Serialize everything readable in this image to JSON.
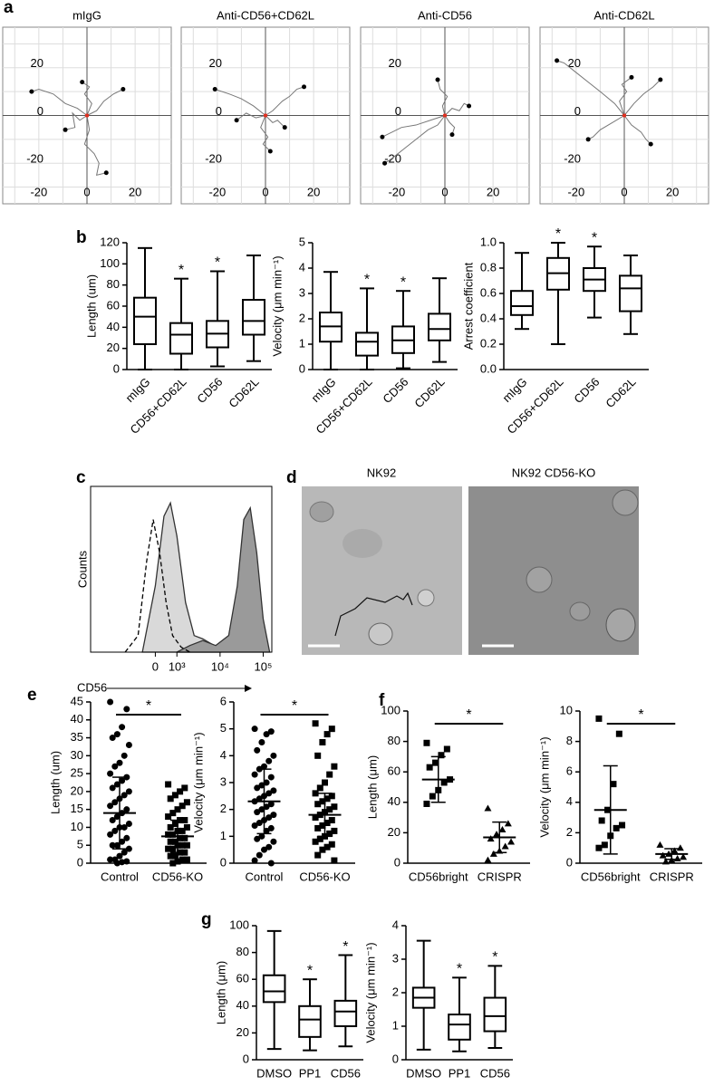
{
  "panel_labels": [
    "a",
    "b",
    "c",
    "d",
    "e",
    "f",
    "g"
  ],
  "images": [
    {
      "title": "NK92"
    },
    {
      "title": "NK92 CD56-KO"
    }
  ],
  "chart_data": [
    {
      "type": "tracks",
      "title": "mIgG",
      "xlim": [
        -35,
        35
      ],
      "ylim": [
        -37,
        37
      ],
      "xticks": [
        -20,
        0,
        20
      ],
      "yticks": [
        -20,
        0,
        20
      ],
      "xgrid": [
        -30,
        -20,
        -10,
        0,
        10,
        20,
        30
      ],
      "ygrid": [
        -30,
        -20,
        -10,
        0,
        10,
        20,
        30
      ],
      "color": "#777777",
      "start_color": "#e03020",
      "end_color": "#000000",
      "series": [
        {
          "x": [
            0,
            -4,
            -9,
            -14,
            -20,
            -23
          ],
          "y": [
            0,
            3,
            5,
            9,
            11,
            10
          ]
        },
        {
          "x": [
            0,
            1,
            -1,
            3,
            5,
            4,
            8
          ],
          "y": [
            0,
            -6,
            -12,
            -16,
            -20,
            -25,
            -24
          ]
        },
        {
          "x": [
            0,
            4,
            7,
            11,
            15
          ],
          "y": [
            0,
            2,
            6,
            9,
            11
          ]
        },
        {
          "x": [
            0,
            -3,
            -6,
            -5,
            -9
          ],
          "y": [
            0,
            -2,
            1,
            -5,
            -6
          ]
        },
        {
          "x": [
            0,
            2,
            -1,
            1,
            -2
          ],
          "y": [
            0,
            5,
            9,
            12,
            14
          ]
        }
      ]
    },
    {
      "type": "tracks",
      "title": "Anti-CD56+CD62L",
      "xlim": [
        -35,
        35
      ],
      "ylim": [
        -37,
        37
      ],
      "xticks": [
        -20,
        0,
        20
      ],
      "yticks": [
        -20,
        0,
        20
      ],
      "xgrid": [
        -30,
        -20,
        -10,
        0,
        10,
        20,
        30
      ],
      "ygrid": [
        -30,
        -20,
        -10,
        0,
        10,
        20,
        30
      ],
      "color": "#777777",
      "start_color": "#e03020",
      "end_color": "#000000",
      "series": [
        {
          "x": [
            0,
            -5,
            -10,
            -15,
            -21
          ],
          "y": [
            0,
            4,
            7,
            9,
            11
          ]
        },
        {
          "x": [
            0,
            3,
            7,
            10,
            13,
            16
          ],
          "y": [
            0,
            2,
            6,
            8,
            11,
            12
          ]
        },
        {
          "x": [
            0,
            -2,
            1,
            -1,
            2
          ],
          "y": [
            0,
            -5,
            -9,
            -12,
            -15
          ]
        },
        {
          "x": [
            0,
            -4,
            -8,
            -12
          ],
          "y": [
            0,
            -1,
            1,
            -2
          ]
        },
        {
          "x": [
            0,
            3,
            5,
            8
          ],
          "y": [
            0,
            -3,
            -2,
            -5
          ]
        }
      ]
    },
    {
      "type": "tracks",
      "title": "Anti-CD56",
      "xlim": [
        -35,
        35
      ],
      "ylim": [
        -37,
        37
      ],
      "xticks": [
        -20,
        0,
        20
      ],
      "yticks": [
        -20,
        0,
        20
      ],
      "xgrid": [
        -30,
        -20,
        -10,
        0,
        10,
        20,
        30
      ],
      "ygrid": [
        -30,
        -20,
        -10,
        0,
        10,
        20,
        30
      ],
      "color": "#777777",
      "start_color": "#e03020",
      "end_color": "#000000",
      "series": [
        {
          "x": [
            0,
            -3,
            -7,
            -12,
            -17,
            -22,
            -25
          ],
          "y": [
            0,
            -4,
            -6,
            -10,
            -14,
            -18,
            -20
          ]
        },
        {
          "x": [
            0,
            -6,
            -12,
            -18,
            -24,
            -26
          ],
          "y": [
            0,
            -2,
            -4,
            -5,
            -8,
            -9
          ]
        },
        {
          "x": [
            0,
            -1,
            1,
            -2,
            -3
          ],
          "y": [
            0,
            4,
            8,
            11,
            15
          ]
        },
        {
          "x": [
            0,
            3,
            6,
            8,
            10
          ],
          "y": [
            0,
            3,
            2,
            5,
            4
          ]
        },
        {
          "x": [
            0,
            2,
            4,
            3
          ],
          "y": [
            0,
            -3,
            -5,
            -8
          ]
        }
      ]
    },
    {
      "type": "tracks",
      "title": "Anti-CD62L",
      "xlim": [
        -35,
        35
      ],
      "ylim": [
        -37,
        37
      ],
      "xticks": [
        -20,
        0,
        20
      ],
      "yticks": [
        -20,
        0,
        20
      ],
      "xgrid": [
        -30,
        -20,
        -10,
        0,
        10,
        20,
        30
      ],
      "ygrid": [
        -30,
        -20,
        -10,
        0,
        10,
        20,
        30
      ],
      "color": "#777777",
      "start_color": "#e03020",
      "end_color": "#000000",
      "series": [
        {
          "x": [
            0,
            -4,
            -10,
            -15,
            -20,
            -25,
            -28
          ],
          "y": [
            0,
            5,
            10,
            14,
            18,
            22,
            23
          ]
        },
        {
          "x": [
            0,
            4,
            8,
            12,
            15
          ],
          "y": [
            0,
            5,
            9,
            12,
            15
          ]
        },
        {
          "x": [
            0,
            -5,
            -10,
            -13,
            -15
          ],
          "y": [
            0,
            -3,
            -6,
            -9,
            -10
          ]
        },
        {
          "x": [
            0,
            3,
            7,
            9,
            11
          ],
          "y": [
            0,
            -4,
            -7,
            -10,
            -12
          ]
        },
        {
          "x": [
            0,
            -2,
            1,
            -1,
            3
          ],
          "y": [
            0,
            6,
            10,
            13,
            16
          ]
        }
      ]
    },
    {
      "type": "box",
      "ylabel": "Length (um)",
      "categories": [
        "mIgG",
        "CD56+CD62L",
        "CD56",
        "CD62L"
      ],
      "ylim": [
        0,
        120
      ],
      "yticks": [
        0,
        20,
        40,
        60,
        80,
        100,
        120
      ],
      "values": [
        [
          0,
          24,
          50,
          68,
          115
        ],
        [
          0,
          15,
          33,
          44,
          86
        ],
        [
          3,
          21,
          34,
          46,
          93
        ],
        [
          8,
          33,
          46,
          66,
          108
        ]
      ],
      "annotations": [
        {
          "text": "*",
          "category": "CD56+CD62L"
        },
        {
          "text": "*",
          "category": "CD56"
        }
      ]
    },
    {
      "type": "box",
      "ylabel": "Velocity (μm min⁻¹)",
      "categories": [
        "mIgG",
        "CD56+CD62L",
        "CD56",
        "CD62L"
      ],
      "ylim": [
        0,
        5
      ],
      "yticks": [
        0,
        1,
        2,
        3,
        4,
        5
      ],
      "values": [
        [
          0,
          1.1,
          1.7,
          2.25,
          3.85
        ],
        [
          0,
          0.55,
          1.1,
          1.45,
          3.2
        ],
        [
          0.05,
          0.65,
          1.15,
          1.7,
          3.1
        ],
        [
          0.3,
          1.15,
          1.6,
          2.2,
          3.6
        ]
      ],
      "annotations": [
        {
          "text": "*",
          "category": "CD56+CD62L"
        },
        {
          "text": "*",
          "category": "CD56"
        }
      ]
    },
    {
      "type": "box",
      "ylabel": "Arrest coefficient",
      "categories": [
        "mIgG",
        "CD56+CD62L",
        "CD56",
        "CD62L"
      ],
      "ylim": [
        0,
        1
      ],
      "yticks": [
        {
          "value": 0,
          "label": "0.0"
        },
        0.2,
        0.4,
        0.6,
        0.8,
        {
          "value": 1,
          "label": "1.0"
        }
      ],
      "values": [
        [
          0.32,
          0.43,
          0.5,
          0.62,
          0.92
        ],
        [
          0.2,
          0.63,
          0.76,
          0.88,
          1.0
        ],
        [
          0.41,
          0.62,
          0.71,
          0.8,
          0.97
        ],
        [
          0.28,
          0.46,
          0.64,
          0.74,
          0.9
        ]
      ],
      "annotations": [
        {
          "text": "*",
          "category": "CD56+CD62L"
        },
        {
          "text": "*",
          "category": "CD56"
        }
      ]
    },
    {
      "type": "density",
      "xlabel": "CD56",
      "ylabel": "Counts",
      "xlim": [
        1.0,
        5.2
      ],
      "ylim": [
        0,
        100
      ],
      "xticks": [
        {
          "value": 2.5,
          "label": "0"
        },
        {
          "value": 3,
          "label": "10³"
        },
        {
          "value": 4,
          "label": "10⁴"
        },
        {
          "value": 5,
          "label": "10⁵"
        }
      ],
      "series": [
        {
          "color": "#d9d9d9",
          "fill": true,
          "x": [
            2.2,
            2.5,
            2.7,
            2.85,
            3.0,
            3.2,
            3.4,
            3.6,
            3.8,
            4.0
          ],
          "values": [
            0,
            40,
            82,
            90,
            70,
            30,
            10,
            8,
            5,
            0
          ]
        },
        {
          "color": "#9a9a9a",
          "fill": true,
          "x": [
            3.0,
            3.3,
            3.6,
            3.9,
            4.2,
            4.4,
            4.55,
            4.7,
            4.85,
            5.0,
            5.15
          ],
          "values": [
            0,
            4,
            7,
            4,
            10,
            40,
            80,
            87,
            60,
            20,
            0
          ]
        },
        {
          "color": "#000000",
          "dash": true,
          "x": [
            1.8,
            2.1,
            2.3,
            2.45,
            2.6,
            2.75,
            2.9,
            3.1,
            3.3
          ],
          "values": [
            0,
            10,
            55,
            80,
            60,
            30,
            10,
            3,
            0
          ]
        }
      ]
    },
    {
      "type": "dot",
      "ylabel": "Length (um)",
      "categories": [
        "Control",
        "CD56-KO"
      ],
      "ylim": [
        0,
        45
      ],
      "yticks": [
        0,
        5,
        10,
        15,
        20,
        25,
        30,
        35,
        40,
        45
      ],
      "markers": [
        "circle",
        "square"
      ],
      "values": [
        [
          45,
          43,
          38,
          36,
          35,
          33,
          30,
          28,
          27,
          25,
          24,
          23,
          22,
          21,
          20,
          19,
          18,
          17,
          16,
          15,
          14,
          13,
          12,
          11,
          10,
          10,
          9,
          8,
          7,
          6,
          5,
          5,
          4,
          3,
          2,
          1,
          1,
          0.5,
          0.3,
          0
        ],
        [
          22,
          21,
          20,
          19,
          18,
          17,
          16,
          15,
          14,
          13,
          12,
          12,
          11,
          10,
          10,
          9,
          9,
          8,
          8,
          7,
          7,
          6,
          6,
          5,
          5,
          5,
          4,
          4,
          3,
          3,
          2,
          2,
          1,
          1,
          0.5,
          0
        ]
      ],
      "means": [
        14,
        7.5
      ],
      "sds": [
        10,
        4.5
      ],
      "annotations": [
        {
          "text": "*"
        }
      ]
    },
    {
      "type": "dot",
      "ylabel": "Velocity (μm min⁻¹)",
      "categories": [
        "Control",
        "CD56-KO"
      ],
      "ylim": [
        0,
        6
      ],
      "yticks": [
        0,
        1,
        2,
        3,
        4,
        5,
        6
      ],
      "markers": [
        "circle",
        "square"
      ],
      "values": [
        [
          5.0,
          4.9,
          4.8,
          4.5,
          4.2,
          4.0,
          3.8,
          3.6,
          3.5,
          3.3,
          3.2,
          3.0,
          2.9,
          2.8,
          2.7,
          2.6,
          2.5,
          2.4,
          2.3,
          2.2,
          2.1,
          2.0,
          1.9,
          1.8,
          1.7,
          1.6,
          1.5,
          1.4,
          1.3,
          1.2,
          1.0,
          0.9,
          0.8,
          0.6,
          0.5,
          0.3,
          0.1,
          0
        ],
        [
          5.2,
          5.0,
          4.8,
          4.5,
          4.0,
          3.6,
          3.3,
          3.0,
          2.8,
          2.6,
          2.5,
          2.4,
          2.3,
          2.2,
          2.1,
          2.0,
          1.9,
          1.8,
          1.7,
          1.6,
          1.5,
          1.4,
          1.3,
          1.2,
          1.1,
          1.0,
          0.9,
          0.8,
          0.7,
          0.6,
          0.5,
          0.3,
          0.1
        ]
      ],
      "means": [
        2.3,
        1.8
      ],
      "sds": [
        1.2,
        0.8
      ],
      "annotations": [
        {
          "text": "*"
        }
      ]
    },
    {
      "type": "dot",
      "ylabel": "Length (μm)",
      "categories": [
        "CD56bright",
        "CRISPR"
      ],
      "ylim": [
        0,
        100
      ],
      "yticks": [
        0,
        20,
        40,
        60,
        80,
        100
      ],
      "markers": [
        "square",
        "triangle"
      ],
      "values": [
        [
          79,
          75,
          71,
          66,
          63,
          55,
          53,
          48,
          44,
          39
        ],
        [
          36,
          26,
          22,
          19,
          16,
          14,
          11,
          8,
          6,
          2
        ]
      ],
      "means": [
        55,
        17
      ],
      "sds": [
        15,
        10
      ],
      "annotations": [
        {
          "text": "*"
        }
      ]
    },
    {
      "type": "dot",
      "ylabel": "Velocity (μm min⁻¹)",
      "categories": [
        "CD56bright",
        "CRISPR"
      ],
      "ylim": [
        0,
        10
      ],
      "yticks": [
        0,
        2,
        4,
        6,
        8,
        10
      ],
      "markers": [
        "square",
        "triangle"
      ],
      "values": [
        [
          9.5,
          8.5,
          5.2,
          3.5,
          2.8,
          2.5,
          2.3,
          1.8,
          1.2,
          1.0
        ],
        [
          1.2,
          1.0,
          0.8,
          0.6,
          0.5,
          0.4,
          0.3,
          0.2,
          0.1
        ]
      ],
      "means": [
        3.5,
        0.6
      ],
      "sds": [
        2.9,
        0.35
      ],
      "annotations": [
        {
          "text": "*"
        }
      ]
    },
    {
      "type": "box",
      "ylabel": "Length (μm)",
      "categories": [
        "DMSO",
        "PP1",
        "CD56"
      ],
      "ylim": [
        0,
        100
      ],
      "yticks": [
        0,
        20,
        40,
        60,
        80,
        100
      ],
      "values": [
        [
          8,
          43,
          51,
          63,
          96
        ],
        [
          7,
          17,
          30,
          40,
          60
        ],
        [
          10,
          25,
          36,
          44,
          78
        ]
      ],
      "annotations": [
        {
          "text": "*",
          "category": "PP1"
        },
        {
          "text": "*",
          "category": "CD56"
        }
      ]
    },
    {
      "type": "box",
      "ylabel": "Velocity (μm min⁻¹)",
      "categories": [
        "DMSO",
        "PP1",
        "CD56"
      ],
      "ylim": [
        0,
        4
      ],
      "yticks": [
        0,
        1,
        2,
        3,
        4
      ],
      "values": [
        [
          0.3,
          1.55,
          1.85,
          2.15,
          3.55
        ],
        [
          0.25,
          0.6,
          1.05,
          1.35,
          2.45
        ],
        [
          0.35,
          0.85,
          1.3,
          1.85,
          2.8
        ]
      ],
      "annotations": [
        {
          "text": "*",
          "category": "PP1"
        },
        {
          "text": "*",
          "category": "CD56"
        }
      ]
    }
  ]
}
